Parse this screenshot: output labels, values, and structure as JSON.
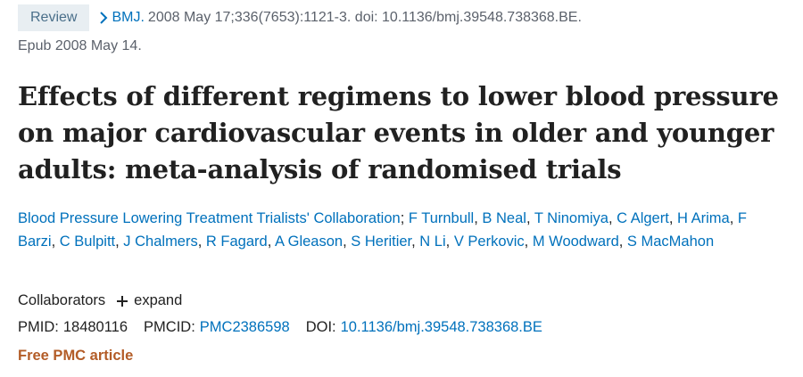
{
  "header": {
    "badge": "Review",
    "citation_link": "BMJ.",
    "citation_rest": "2008 May 17;336(7653):1121-3. doi: 10.1136/bmj.39548.738368.BE.",
    "epub": "Epub 2008 May 14."
  },
  "article": {
    "title": "Effects of different regimens to lower blood pressure on major cardiovascular events in older and younger adults: meta-analysis of randomised trials",
    "authors": [
      "Blood Pressure Lowering Treatment Trialists' Collaboration",
      "F Turnbull",
      "B Neal",
      "T Ninomiya",
      "C Algert",
      "H Arima",
      "F Barzi",
      "C Bulpitt",
      "J Chalmers",
      "R Fagard",
      "A Gleason",
      "S Heritier",
      "N Li",
      "V Perkovic",
      "M Woodward",
      "S MacMahon"
    ]
  },
  "collaborators": {
    "label": "Collaborators",
    "expand_label": "expand"
  },
  "identifiers": {
    "pmid_label": "PMID:",
    "pmid": "18480116",
    "pmcid_label": "PMCID:",
    "pmcid": "PMC2386598",
    "doi_label": "DOI:",
    "doi": "10.1136/bmj.39548.738368.BE"
  },
  "free_label": "Free PMC article",
  "icons": {
    "chevron": "chevron-right-icon",
    "plus": "plus-icon"
  },
  "colors": {
    "link": "#0071bc",
    "badge_bg": "#e8eef2",
    "badge_text": "#4a6f8a",
    "free_text": "#b35c27",
    "muted_text": "#5b616b"
  }
}
